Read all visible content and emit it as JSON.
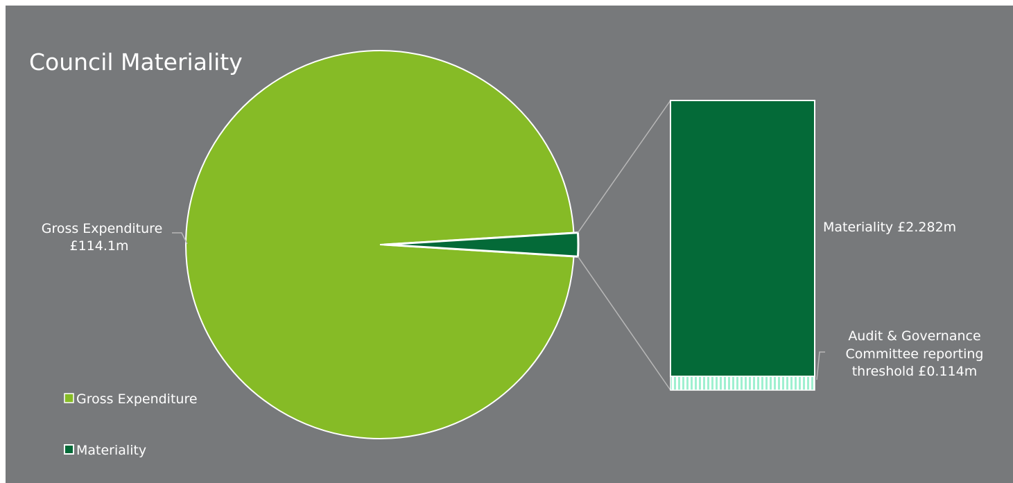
{
  "chart_data": {
    "type": "pie",
    "title": "Council Materiality",
    "variant": "bar-of-pie",
    "pie": {
      "slices": [
        {
          "name": "Gross Expenditure",
          "label_line1": "Gross Expenditure",
          "label_line2": "£114.1m",
          "value": 114.1,
          "color": "#86bb26"
        },
        {
          "name": "Materiality",
          "value": 2.282,
          "color": "#046a38"
        }
      ]
    },
    "bar": {
      "segments": [
        {
          "name": "Materiality",
          "label": "Materiality £2.282m",
          "value": 2.282,
          "color": "#046a38",
          "pattern": "solid"
        },
        {
          "name": "Audit & Governance Committee reporting threshold",
          "label_line1": "Audit & Governance",
          "label_line2": "Committee  reporting",
          "label_line3": "threshold £0.114m",
          "value": 0.114,
          "color": "#9ff0d0",
          "pattern": "vertical-stripes"
        }
      ]
    },
    "legend": {
      "placement": "bottom-left",
      "entries": [
        {
          "name": "Gross Expenditure",
          "color": "#86bb26",
          "filled": true
        },
        {
          "name": "Materiality",
          "color": "#046a38",
          "filled": false
        }
      ]
    }
  },
  "colors": {
    "background": "#77797b",
    "frame": "#ffffff",
    "leader": "#b8b8b8"
  }
}
